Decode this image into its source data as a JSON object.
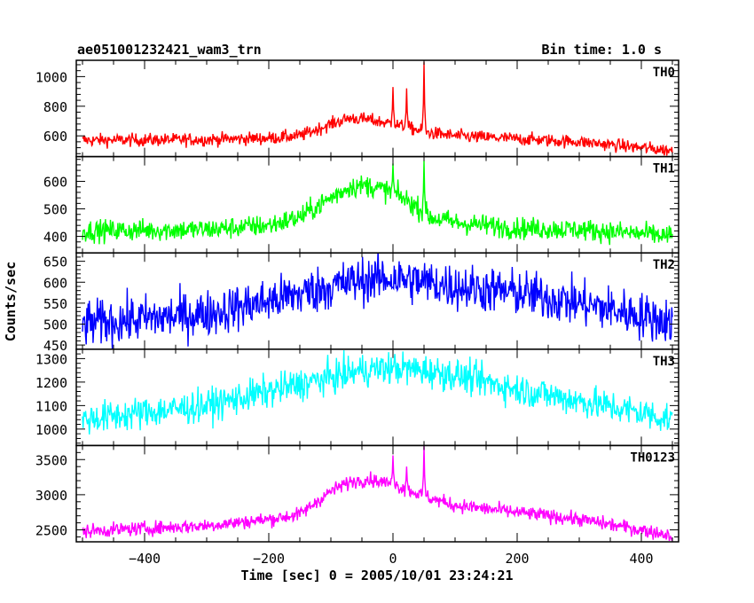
{
  "chart_data": {
    "type": "line",
    "title_left": "ae051001232421_wam3_trn",
    "title_right": "Bin time: 1.0 s",
    "xlabel": "Time [sec] 0 = 2005/10/01 23:24:21",
    "ylabel": "Counts/sec",
    "xlim": [
      -510,
      460
    ],
    "x_ticks": [
      -400,
      -200,
      0,
      200,
      400
    ],
    "data_range": [
      -500,
      450
    ],
    "grid": false,
    "panels": [
      {
        "name": "TH0",
        "color": "#ff0000",
        "ylim": [
          460,
          1110
        ],
        "y_ticks": [
          600,
          800,
          1000
        ],
        "baseline": [
          [
            -500,
            570
          ],
          [
            -300,
            575
          ],
          [
            -200,
            585
          ],
          [
            -150,
            600
          ],
          [
            -100,
            680
          ],
          [
            -70,
            720
          ],
          [
            -40,
            710
          ],
          [
            0,
            680
          ],
          [
            30,
            650
          ],
          [
            60,
            620
          ],
          [
            100,
            600
          ],
          [
            200,
            580
          ],
          [
            300,
            560
          ],
          [
            400,
            520
          ],
          [
            450,
            500
          ]
        ],
        "noise": 22,
        "spikes": [
          [
            0,
            930
          ],
          [
            22,
            920
          ],
          [
            50,
            1100
          ]
        ]
      },
      {
        "name": "TH1",
        "color": "#00ff00",
        "ylim": [
          340,
          690
        ],
        "y_ticks": [
          400,
          500,
          600
        ],
        "baseline": [
          [
            -500,
            420
          ],
          [
            -300,
            425
          ],
          [
            -200,
            440
          ],
          [
            -150,
            470
          ],
          [
            -100,
            540
          ],
          [
            -70,
            580
          ],
          [
            -40,
            585
          ],
          [
            0,
            560
          ],
          [
            30,
            520
          ],
          [
            60,
            470
          ],
          [
            100,
            450
          ],
          [
            200,
            430
          ],
          [
            300,
            425
          ],
          [
            400,
            410
          ],
          [
            450,
            400
          ]
        ],
        "noise": 20,
        "spikes": [
          [
            0,
            665
          ],
          [
            50,
            675
          ]
        ]
      },
      {
        "name": "TH2",
        "color": "#0000ff",
        "ylim": [
          440,
          670
        ],
        "y_ticks": [
          450,
          500,
          550,
          600,
          650
        ],
        "baseline": [
          [
            -500,
            500
          ],
          [
            -300,
            525
          ],
          [
            -200,
            555
          ],
          [
            -100,
            590
          ],
          [
            -50,
            605
          ],
          [
            0,
            610
          ],
          [
            50,
            600
          ],
          [
            100,
            590
          ],
          [
            200,
            575
          ],
          [
            300,
            550
          ],
          [
            400,
            520
          ],
          [
            450,
            505
          ]
        ],
        "noise": 28,
        "spikes": []
      },
      {
        "name": "TH3",
        "color": "#00ffff",
        "ylim": [
          930,
          1340
        ],
        "y_ticks": [
          1000,
          1100,
          1200,
          1300
        ],
        "baseline": [
          [
            -500,
            1040
          ],
          [
            -300,
            1100
          ],
          [
            -200,
            1160
          ],
          [
            -100,
            1220
          ],
          [
            -50,
            1250
          ],
          [
            0,
            1260
          ],
          [
            50,
            1250
          ],
          [
            100,
            1230
          ],
          [
            200,
            1170
          ],
          [
            300,
            1120
          ],
          [
            400,
            1070
          ],
          [
            450,
            1040
          ]
        ],
        "noise": 35,
        "spikes": []
      },
      {
        "name": "TH0123",
        "color": "#ff00ff",
        "ylim": [
          2330,
          3700
        ],
        "y_ticks": [
          2500,
          3000,
          3500
        ],
        "baseline": [
          [
            -500,
            2480
          ],
          [
            -300,
            2560
          ],
          [
            -200,
            2650
          ],
          [
            -150,
            2720
          ],
          [
            -100,
            3050
          ],
          [
            -70,
            3180
          ],
          [
            -40,
            3220
          ],
          [
            0,
            3150
          ],
          [
            30,
            3050
          ],
          [
            60,
            2950
          ],
          [
            100,
            2850
          ],
          [
            200,
            2750
          ],
          [
            300,
            2650
          ],
          [
            400,
            2500
          ],
          [
            450,
            2420
          ]
        ],
        "noise": 50,
        "spikes": [
          [
            0,
            3560
          ],
          [
            22,
            3400
          ],
          [
            50,
            3700
          ]
        ]
      }
    ]
  }
}
